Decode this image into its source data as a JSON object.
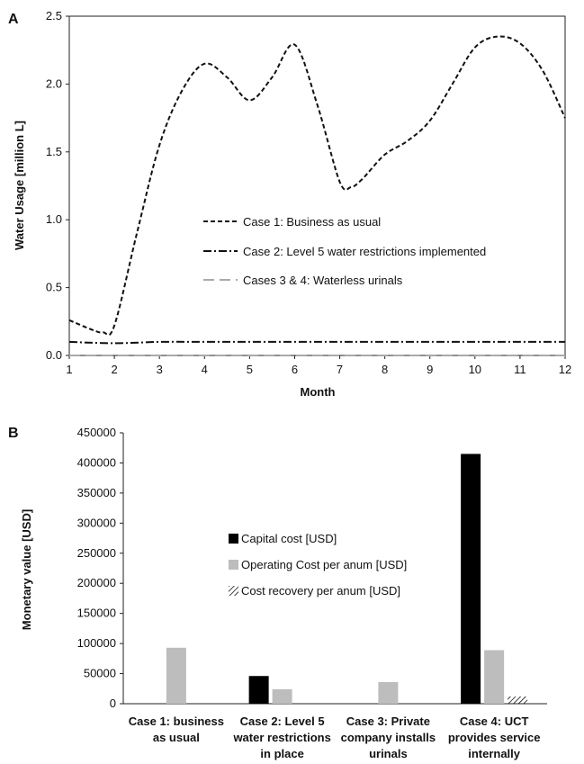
{
  "chart_data": [
    {
      "panel": "A",
      "type": "line",
      "xlabel": "Month",
      "ylabel": "Water Usage [million L]",
      "xlim": [
        1,
        12
      ],
      "ylim": [
        0,
        2.5
      ],
      "x_ticks": [
        1,
        2,
        3,
        4,
        5,
        6,
        7,
        8,
        9,
        10,
        11,
        12
      ],
      "y_ticks": [
        0.0,
        0.5,
        1.0,
        1.5,
        2.0,
        2.5
      ],
      "y_tick_labels": [
        "0.0",
        "0.5",
        "1.0",
        "1.5",
        "2.0",
        "2.5"
      ],
      "legend_position": "center-right",
      "series": [
        {
          "name": "Case 1: Business as usual",
          "style": "dashed",
          "color": "#111111",
          "x": [
            1,
            1.5,
            1.75,
            2,
            2.5,
            3,
            3.5,
            4,
            4.5,
            5,
            5.5,
            6,
            6.5,
            7,
            7.25,
            7.5,
            8,
            8.5,
            9,
            9.5,
            10,
            10.5,
            11,
            11.5,
            12
          ],
          "y": [
            0.26,
            0.19,
            0.17,
            0.22,
            0.9,
            1.55,
            1.95,
            2.15,
            2.05,
            1.88,
            2.05,
            2.29,
            1.85,
            1.28,
            1.24,
            1.3,
            1.48,
            1.58,
            1.73,
            2.0,
            2.27,
            2.35,
            2.3,
            2.1,
            1.75
          ]
        },
        {
          "name": "Case 2: Level 5 water restrictions implemented",
          "style": "dash-dot",
          "color": "#111111",
          "x": [
            1,
            2,
            3,
            4,
            5,
            6,
            7,
            8,
            9,
            10,
            11,
            12
          ],
          "y": [
            0.1,
            0.09,
            0.1,
            0.1,
            0.1,
            0.1,
            0.1,
            0.1,
            0.1,
            0.1,
            0.1,
            0.1
          ]
        },
        {
          "name": "Cases 3 & 4: Waterless urinals",
          "style": "long-dash",
          "color": "#aaaaaa",
          "x": [
            1,
            2,
            3,
            4,
            5,
            6,
            7,
            8,
            9,
            10,
            11,
            12
          ],
          "y": [
            0,
            0,
            0,
            0,
            0,
            0,
            0,
            0,
            0,
            0,
            0,
            0
          ]
        }
      ]
    },
    {
      "panel": "B",
      "type": "bar",
      "ylabel": "Monetary value [USD]",
      "ylim": [
        0,
        450000
      ],
      "y_ticks": [
        0,
        50000,
        100000,
        150000,
        200000,
        250000,
        300000,
        350000,
        400000,
        450000
      ],
      "categories": [
        [
          "Case 1: business",
          "as usual"
        ],
        [
          "Case 2: Level 5",
          "water restrictions",
          "in place"
        ],
        [
          "Case 3: Private",
          "company installs",
          "urinals"
        ],
        [
          "Case 4: UCT",
          "provides service",
          "internally"
        ]
      ],
      "legend_position": "center",
      "series": [
        {
          "name": "Capital cost [USD]",
          "fill": "solid-black",
          "values": [
            0,
            46000,
            0,
            415000
          ]
        },
        {
          "name": "Operating Cost per anum [USD]",
          "fill": "solid-gray",
          "values": [
            93000,
            24000,
            36000,
            89000
          ]
        },
        {
          "name": "Cost recovery  per anum [USD]",
          "fill": "hatched",
          "values": [
            0,
            0,
            0,
            12000
          ]
        }
      ]
    }
  ],
  "panel_labels": [
    "A",
    "B"
  ],
  "colors": {
    "black": "#000000",
    "gray": "#bdbdbd",
    "axis": "#222222"
  }
}
